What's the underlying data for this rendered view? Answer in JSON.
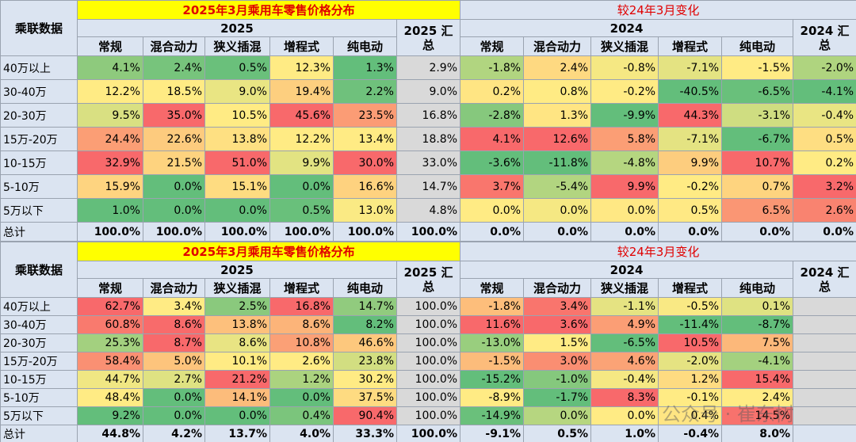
{
  "tables": [
    {
      "corner": "乘联数据",
      "title_left": "2025年3月乘用车零售价格分布",
      "title_right": "较24年3月变化",
      "group_left": "2025",
      "summary_left": "2025 汇总",
      "group_right": "2024",
      "summary_right": "2024 汇总",
      "columns_left": [
        "常规",
        "混合动力",
        "狭义插混",
        "增程式",
        "纯电动"
      ],
      "columns_right": [
        "常规",
        "混合动力",
        "狭义插混",
        "增程式",
        "纯电动"
      ],
      "rows": [
        {
          "label": "40万以上",
          "cells": [
            "4.1%",
            "2.4%",
            "0.5%",
            "12.3%",
            "1.3%",
            "2.9%",
            "-1.8%",
            "2.4%",
            "-0.8%",
            "-7.1%",
            "-1.5%",
            "-2.0%"
          ]
        },
        {
          "label": "30-40万",
          "cells": [
            "12.2%",
            "18.5%",
            "9.0%",
            "19.4%",
            "2.2%",
            "9.0%",
            "0.2%",
            "0.8%",
            "-0.2%",
            "-40.5%",
            "-6.5%",
            "-4.1%"
          ]
        },
        {
          "label": "20-30万",
          "cells": [
            "9.5%",
            "35.0%",
            "10.5%",
            "45.6%",
            "23.5%",
            "16.8%",
            "-2.8%",
            "1.3%",
            "-9.9%",
            "44.3%",
            "-3.1%",
            "-0.4%"
          ]
        },
        {
          "label": "15万-20万",
          "cells": [
            "24.4%",
            "22.6%",
            "13.8%",
            "12.2%",
            "13.4%",
            "18.8%",
            "4.1%",
            "12.6%",
            "5.8%",
            "-7.1%",
            "-6.7%",
            "0.5%"
          ]
        },
        {
          "label": "10-15万",
          "cells": [
            "32.9%",
            "21.5%",
            "51.0%",
            "9.9%",
            "30.0%",
            "33.0%",
            "-3.6%",
            "-11.8%",
            "-4.8%",
            "9.9%",
            "10.7%",
            "0.2%"
          ]
        },
        {
          "label": "5-10万",
          "cells": [
            "15.9%",
            "0.0%",
            "15.1%",
            "0.0%",
            "16.6%",
            "14.7%",
            "3.7%",
            "-5.4%",
            "9.9%",
            "-0.2%",
            "0.7%",
            "3.2%"
          ]
        },
        {
          "label": "5万以下",
          "cells": [
            "1.0%",
            "0.0%",
            "0.0%",
            "0.5%",
            "13.0%",
            "4.8%",
            "0.0%",
            "0.0%",
            "0.0%",
            "0.5%",
            "6.5%",
            "2.6%"
          ]
        }
      ],
      "total": {
        "label": "总计",
        "cells": [
          "100.0%",
          "100.0%",
          "100.0%",
          "100.0%",
          "100.0%",
          "100.0%",
          "0.0%",
          "0.0%",
          "0.0%",
          "0.0%",
          "0.0%",
          "0.0%"
        ]
      }
    },
    {
      "corner": "乘联数据",
      "title_left": "2025年3月乘用车零售价格分布",
      "title_right": "较24年3月变化",
      "group_left": "2025",
      "summary_left": "2025 汇总",
      "group_right": "2024",
      "summary_right": "2024 汇总",
      "columns_left": [
        "常规",
        "混合动力",
        "狭义插混",
        "增程式",
        "纯电动"
      ],
      "columns_right": [
        "常规",
        "混合动力",
        "狭义插混",
        "增程式",
        "纯电动"
      ],
      "rows": [
        {
          "label": "40万以上",
          "cells": [
            "62.7%",
            "3.4%",
            "2.5%",
            "16.8%",
            "14.7%",
            "100.0%",
            "-1.8%",
            "3.4%",
            "-1.1%",
            "-0.5%",
            "0.1%",
            null
          ]
        },
        {
          "label": "30-40万",
          "cells": [
            "60.8%",
            "8.6%",
            "13.8%",
            "8.6%",
            "8.2%",
            "100.0%",
            "11.6%",
            "3.6%",
            "4.9%",
            "-11.4%",
            "-8.7%",
            null
          ]
        },
        {
          "label": "20-30万",
          "cells": [
            "25.3%",
            "8.7%",
            "8.6%",
            "10.8%",
            "46.6%",
            "100.0%",
            "-13.0%",
            "1.5%",
            "-6.5%",
            "10.5%",
            "7.5%",
            null
          ]
        },
        {
          "label": "15万-20万",
          "cells": [
            "58.4%",
            "5.0%",
            "10.1%",
            "2.6%",
            "23.8%",
            "100.0%",
            "-1.5%",
            "3.0%",
            "4.6%",
            "-2.0%",
            "-4.1%",
            null
          ]
        },
        {
          "label": "10-15万",
          "cells": [
            "44.7%",
            "2.7%",
            "21.2%",
            "1.2%",
            "30.2%",
            "100.0%",
            "-15.2%",
            "-1.0%",
            "-0.4%",
            "1.2%",
            "15.4%",
            null
          ]
        },
        {
          "label": "5-10万",
          "cells": [
            "48.4%",
            "0.0%",
            "14.1%",
            "0.0%",
            "37.5%",
            "100.0%",
            "-8.9%",
            "-1.7%",
            "8.3%",
            "-0.1%",
            "2.4%",
            null
          ]
        },
        {
          "label": "5万以下",
          "cells": [
            "9.2%",
            "0.0%",
            "0.0%",
            "0.4%",
            "90.4%",
            "100.0%",
            "-14.9%",
            "0.0%",
            "0.0%",
            "0.4%",
            "14.5%",
            null
          ]
        }
      ],
      "total": {
        "label": "总计",
        "cells": [
          "44.8%",
          "4.2%",
          "13.7%",
          "4.0%",
          "33.3%",
          "100.0%",
          "-9.1%",
          "0.5%",
          "1.0%",
          "-0.4%",
          "8.0%",
          null
        ]
      }
    }
  ],
  "watermark": "公众号 · 崔东树"
}
